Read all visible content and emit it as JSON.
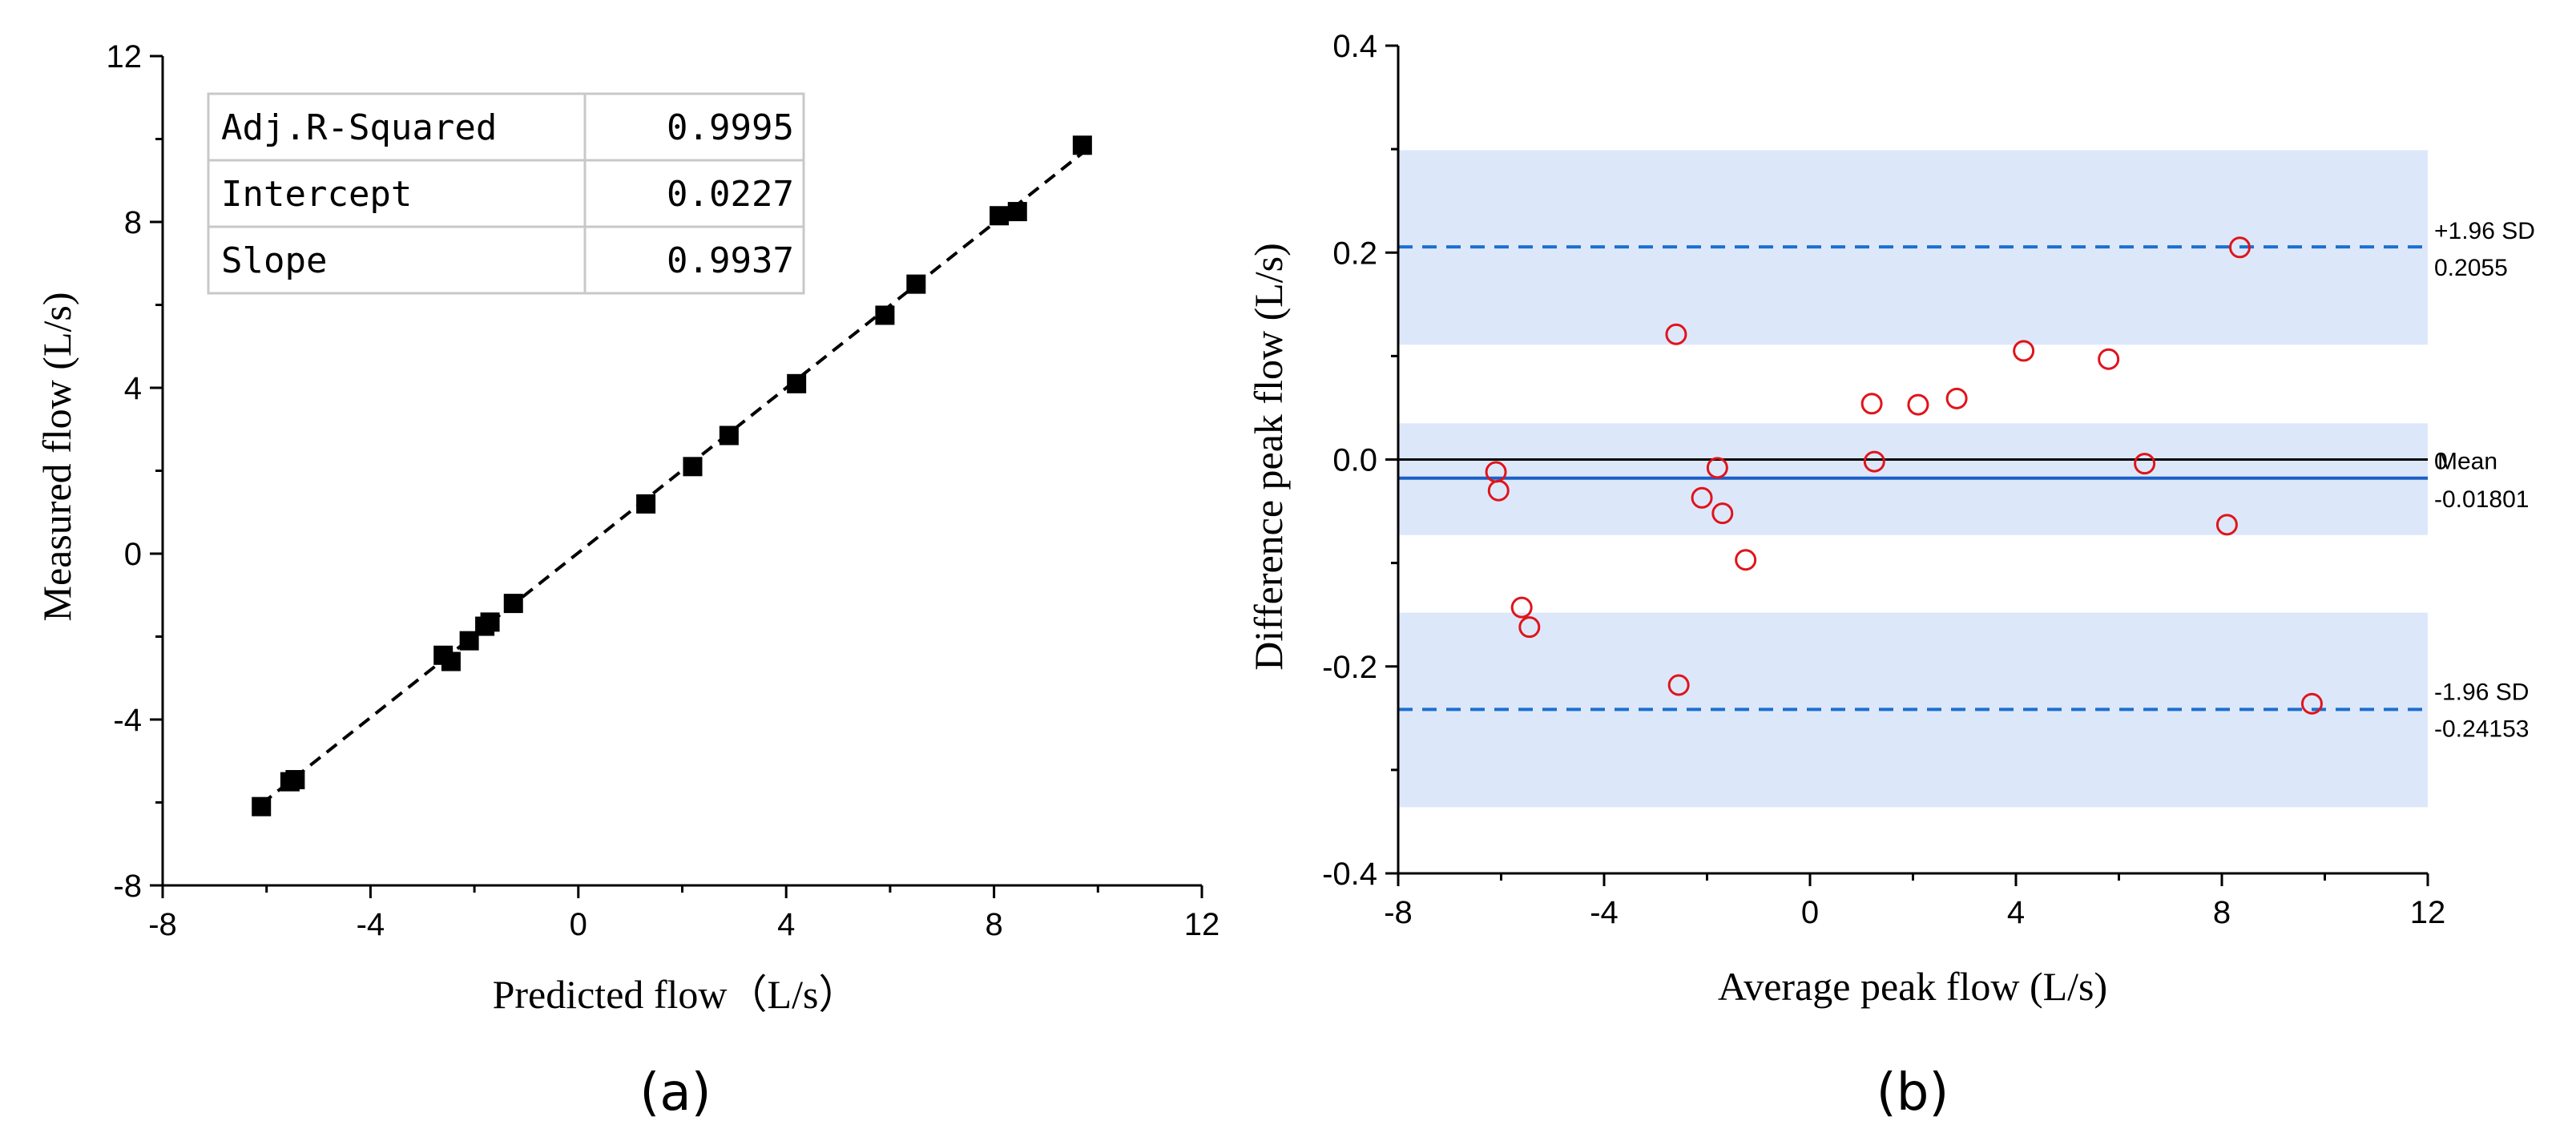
{
  "colors": {
    "axis": "#000000",
    "marker_a": "#000000",
    "marker_b": "#e0141b",
    "mean_line": "#1c5fc8",
    "sd_line": "#1c6fd0",
    "band": "#dce8fa",
    "zero_line": "#000000",
    "table_border": "#c8c8c8"
  },
  "panels": {
    "a": {
      "label": "(a)"
    },
    "b": {
      "label": "(b)"
    }
  },
  "chart_data": [
    {
      "type": "scatter",
      "panel": "a",
      "xlabel": "Predicted flow（L/s）",
      "ylabel": "Measured flow (L/s)",
      "xlim": [
        -8,
        12
      ],
      "ylim": [
        -8,
        12
      ],
      "xticks": [
        -8,
        -4,
        0,
        4,
        8,
        12
      ],
      "yticks": [
        -8,
        -4,
        0,
        4,
        8,
        12
      ],
      "xtick_labels": [
        "-8",
        "-4",
        "0",
        "4",
        "8",
        "12"
      ],
      "ytick_labels": [
        "-8",
        "-4",
        "0",
        "4",
        "8",
        "12"
      ],
      "marker": "square",
      "points": [
        {
          "x": -6.1,
          "y": -6.1
        },
        {
          "x": -5.55,
          "y": -5.5
        },
        {
          "x": -5.45,
          "y": -5.45
        },
        {
          "x": -2.6,
          "y": -2.45
        },
        {
          "x": -2.45,
          "y": -2.6
        },
        {
          "x": -2.1,
          "y": -2.1
        },
        {
          "x": -1.8,
          "y": -1.75
        },
        {
          "x": -1.7,
          "y": -1.65
        },
        {
          "x": -1.25,
          "y": -1.2
        },
        {
          "x": 1.3,
          "y": 1.2
        },
        {
          "x": 2.2,
          "y": 2.1
        },
        {
          "x": 2.9,
          "y": 2.85
        },
        {
          "x": 4.2,
          "y": 4.1
        },
        {
          "x": 5.9,
          "y": 5.75
        },
        {
          "x": 6.5,
          "y": 6.5
        },
        {
          "x": 8.1,
          "y": 8.15
        },
        {
          "x": 8.45,
          "y": 8.25
        },
        {
          "x": 9.7,
          "y": 9.85
        }
      ],
      "fit_line": {
        "style": "dashed",
        "x_from": -6.1,
        "x_to": 9.7,
        "intercept": 0.0227,
        "slope": 0.9937
      },
      "stats_table": [
        {
          "label": "Adj.R-Squared",
          "value": "0.9995"
        },
        {
          "label": "Intercept",
          "value": "0.0227"
        },
        {
          "label": "Slope",
          "value": "0.9937"
        }
      ]
    },
    {
      "type": "scatter",
      "panel": "b",
      "subtype": "bland-altman",
      "xlabel": "Average peak flow (L/s)",
      "ylabel": "Difference peak flow (L/s)",
      "xlim": [
        -8,
        12
      ],
      "ylim": [
        -0.4,
        0.4
      ],
      "xticks": [
        -8,
        -4,
        0,
        4,
        8,
        12
      ],
      "yticks": [
        -0.4,
        -0.2,
        0.0,
        0.2,
        0.4
      ],
      "xtick_labels": [
        "-8",
        "-4",
        "0",
        "4",
        "8",
        "12"
      ],
      "ytick_labels": [
        "-0.4",
        "-0.2",
        "0.0",
        "0.2",
        "0.4"
      ],
      "marker": "open-circle",
      "points": [
        {
          "x": -6.1,
          "y": -0.012
        },
        {
          "x": -6.05,
          "y": -0.03
        },
        {
          "x": -5.6,
          "y": -0.143
        },
        {
          "x": -5.45,
          "y": -0.162
        },
        {
          "x": -2.6,
          "y": 0.121
        },
        {
          "x": -2.55,
          "y": -0.218
        },
        {
          "x": -2.1,
          "y": -0.037
        },
        {
          "x": -1.8,
          "y": -0.008
        },
        {
          "x": -1.7,
          "y": -0.052
        },
        {
          "x": -1.25,
          "y": -0.097
        },
        {
          "x": 1.2,
          "y": 0.054
        },
        {
          "x": 1.25,
          "y": -0.002
        },
        {
          "x": 2.1,
          "y": 0.053
        },
        {
          "x": 2.85,
          "y": 0.059
        },
        {
          "x": 4.15,
          "y": 0.105
        },
        {
          "x": 5.8,
          "y": 0.097
        },
        {
          "x": 6.5,
          "y": -0.004
        },
        {
          "x": 8.1,
          "y": -0.063
        },
        {
          "x": 8.35,
          "y": 0.205
        },
        {
          "x": 9.75,
          "y": -0.236
        }
      ],
      "bands": [
        {
          "from": 0.111,
          "to": 0.299
        },
        {
          "from": -0.073,
          "to": 0.035
        },
        {
          "from": -0.336,
          "to": -0.148
        }
      ],
      "zero_line": {
        "y": 0,
        "label": "0"
      },
      "mean": {
        "y": -0.01801,
        "label": "Mean",
        "value_label": "-0.01801"
      },
      "upper_sd": {
        "y": 0.2055,
        "label": "+1.96 SD",
        "value_label": "0.2055"
      },
      "lower_sd": {
        "y": -0.24153,
        "label": "-1.96 SD",
        "value_label": "-0.24153"
      }
    }
  ]
}
